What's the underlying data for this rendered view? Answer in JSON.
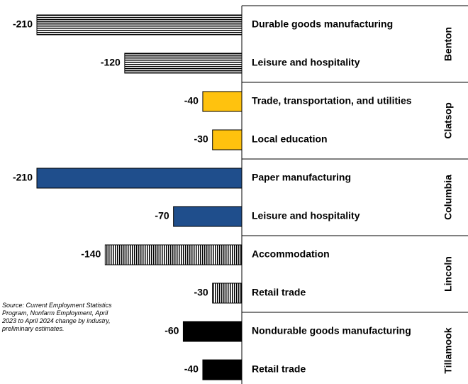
{
  "chart_data": {
    "type": "bar",
    "orientation": "horizontal",
    "xlim": [
      -210,
      0
    ],
    "groups": [
      {
        "name": "Benton",
        "pattern": "horizontal-stripes",
        "color": "#000000",
        "categories": [
          "Durable goods manufacturing",
          "Leisure and hospitality"
        ],
        "values": [
          -210,
          -120
        ]
      },
      {
        "name": "Clatsop",
        "pattern": "solid",
        "color": "#ffc20e",
        "categories": [
          "Trade, transportation, and utilities",
          "Local education"
        ],
        "values": [
          -40,
          -30
        ]
      },
      {
        "name": "Columbia",
        "pattern": "solid",
        "color": "#1f4e8c",
        "categories": [
          "Paper manufacturing",
          "Leisure and hospitality"
        ],
        "values": [
          -210,
          -70
        ]
      },
      {
        "name": "Lincoln",
        "pattern": "vertical-stripes",
        "color": "#000000",
        "categories": [
          "Accommodation",
          "Retail trade"
        ],
        "values": [
          -140,
          -30
        ]
      },
      {
        "name": "Tillamook",
        "pattern": "solid",
        "color": "#000000",
        "categories": [
          "Nondurable goods manufacturing",
          "Retail trade"
        ],
        "values": [
          -60,
          -40
        ]
      }
    ],
    "note": "Source: Current Employment Statistics Program, Nonfarm Employment, April 2023 to April 2024 change by industry, preliminary estimates."
  }
}
